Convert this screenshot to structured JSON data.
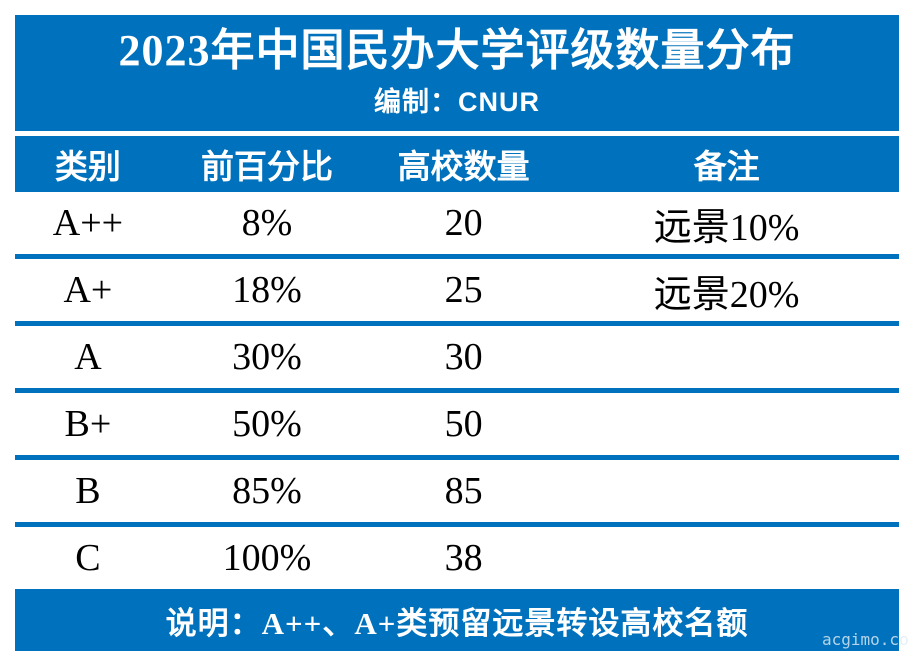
{
  "page": {
    "watermark": "acgimo.co"
  },
  "colors": {
    "accent_blue": "#0071bc",
    "banner_text": "#ffffff",
    "body_text": "#000000",
    "background": "#ffffff"
  },
  "chart_data": {
    "type": "table",
    "title": "2023年中国民办大学评级数量分布",
    "subtitle": "编制：CNUR",
    "columns": [
      "类别",
      "前百分比",
      "高校数量",
      "备注"
    ],
    "rows": [
      [
        "A++",
        "8%",
        "20",
        "远景10%"
      ],
      [
        "A+",
        "18%",
        "25",
        "远景20%"
      ],
      [
        "A",
        "30%",
        "30",
        ""
      ],
      [
        "B+",
        "50%",
        "50",
        ""
      ],
      [
        "B",
        "85%",
        "85",
        ""
      ],
      [
        "C",
        "100%",
        "38",
        ""
      ]
    ],
    "footer": "说明：A++、A+类预留远景转设高校名额",
    "layout": {
      "grid": "horizontal-rules-only",
      "header_position": "top",
      "banner_style": "solid-blue"
    }
  }
}
